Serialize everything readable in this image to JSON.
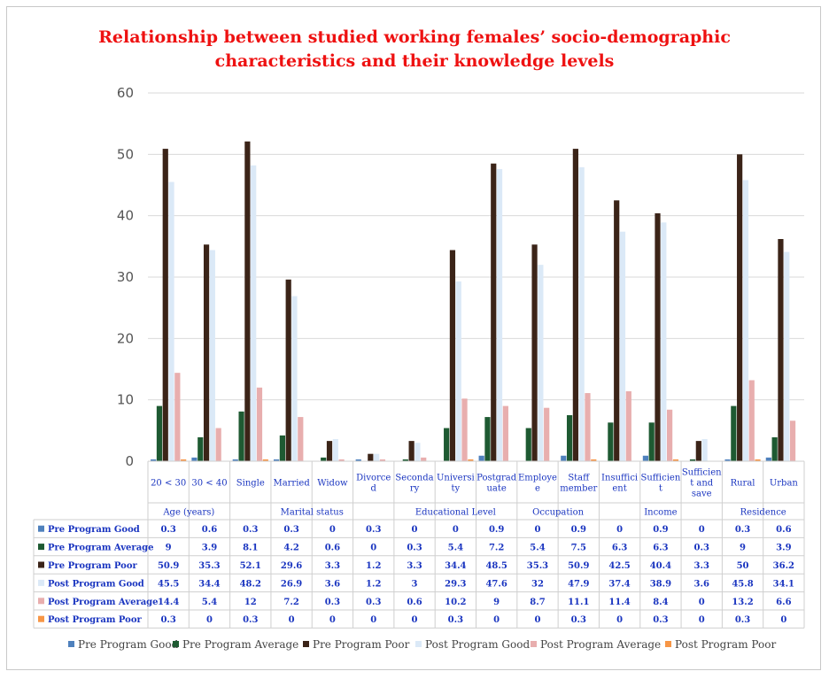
{
  "chart_data": {
    "type": "bar",
    "title_lines": [
      "Relationship between studied working females’ socio-demographic",
      "characteristics and their knowledge levels"
    ],
    "ylim": [
      0,
      60
    ],
    "yticks": [
      0,
      10,
      20,
      30,
      40,
      50,
      60
    ],
    "grid": true,
    "legend_position": "bottom",
    "categories": [
      [
        "20 < 30"
      ],
      [
        "30 < 40"
      ],
      [
        "Single"
      ],
      [
        "Married"
      ],
      [
        "Widow"
      ],
      [
        "Divorce",
        "d"
      ],
      [
        "Seconda",
        "ry"
      ],
      [
        "Universi",
        "ty"
      ],
      [
        "Postgrad",
        "uate"
      ],
      [
        "Employe",
        "e"
      ],
      [
        "Staff",
        "member"
      ],
      [
        "Insuffici",
        "ent"
      ],
      [
        "Sufficien",
        "t"
      ],
      [
        "Sufficien",
        "t and",
        "save"
      ],
      [
        "Rural"
      ],
      [
        "Urban"
      ]
    ],
    "groups": [
      {
        "label": "Age (years)",
        "count": 2
      },
      {
        "label": "Marital status",
        "count": 4
      },
      {
        "label": "Educational Level",
        "count": 3
      },
      {
        "label": "Occupation",
        "count": 2
      },
      {
        "label": "Income",
        "count": 3
      },
      {
        "label": "Residence",
        "count": 2
      }
    ],
    "series": [
      {
        "name": "Pre Program Good",
        "color": "#4f81bd",
        "values": [
          0.3,
          0.6,
          0.3,
          0.3,
          0,
          0.3,
          0,
          0,
          0.9,
          0,
          0.9,
          0,
          0.9,
          0,
          0.3,
          0.6
        ]
      },
      {
        "name": "Pre Program Average",
        "color": "#1e5a32",
        "values": [
          9,
          3.9,
          8.1,
          4.2,
          0.6,
          0,
          0.3,
          5.4,
          7.2,
          5.4,
          7.5,
          6.3,
          6.3,
          0.3,
          9,
          3.9
        ]
      },
      {
        "name": "Pre Program Poor",
        "color": "#3b2418",
        "values": [
          50.9,
          35.3,
          52.1,
          29.6,
          3.3,
          1.2,
          3.3,
          34.4,
          48.5,
          35.3,
          50.9,
          42.5,
          40.4,
          3.3,
          50,
          36.2
        ]
      },
      {
        "name": "Post Program Good",
        "color": "#dbe9f7",
        "values": [
          45.5,
          34.4,
          48.2,
          26.9,
          3.6,
          1.2,
          3,
          29.3,
          47.6,
          32,
          47.9,
          37.4,
          38.9,
          3.6,
          45.8,
          34.1
        ]
      },
      {
        "name": "Post Program Average",
        "color": "#e8aeae",
        "values": [
          14.4,
          5.4,
          12,
          7.2,
          0.3,
          0.3,
          0.6,
          10.2,
          9,
          8.7,
          11.1,
          11.4,
          8.4,
          0,
          13.2,
          6.6
        ]
      },
      {
        "name": "Post Program Poor",
        "color": "#f79646",
        "values": [
          0.3,
          0,
          0.3,
          0,
          0,
          0,
          0,
          0.3,
          0,
          0,
          0.3,
          0,
          0.3,
          0,
          0.3,
          0
        ]
      }
    ]
  }
}
